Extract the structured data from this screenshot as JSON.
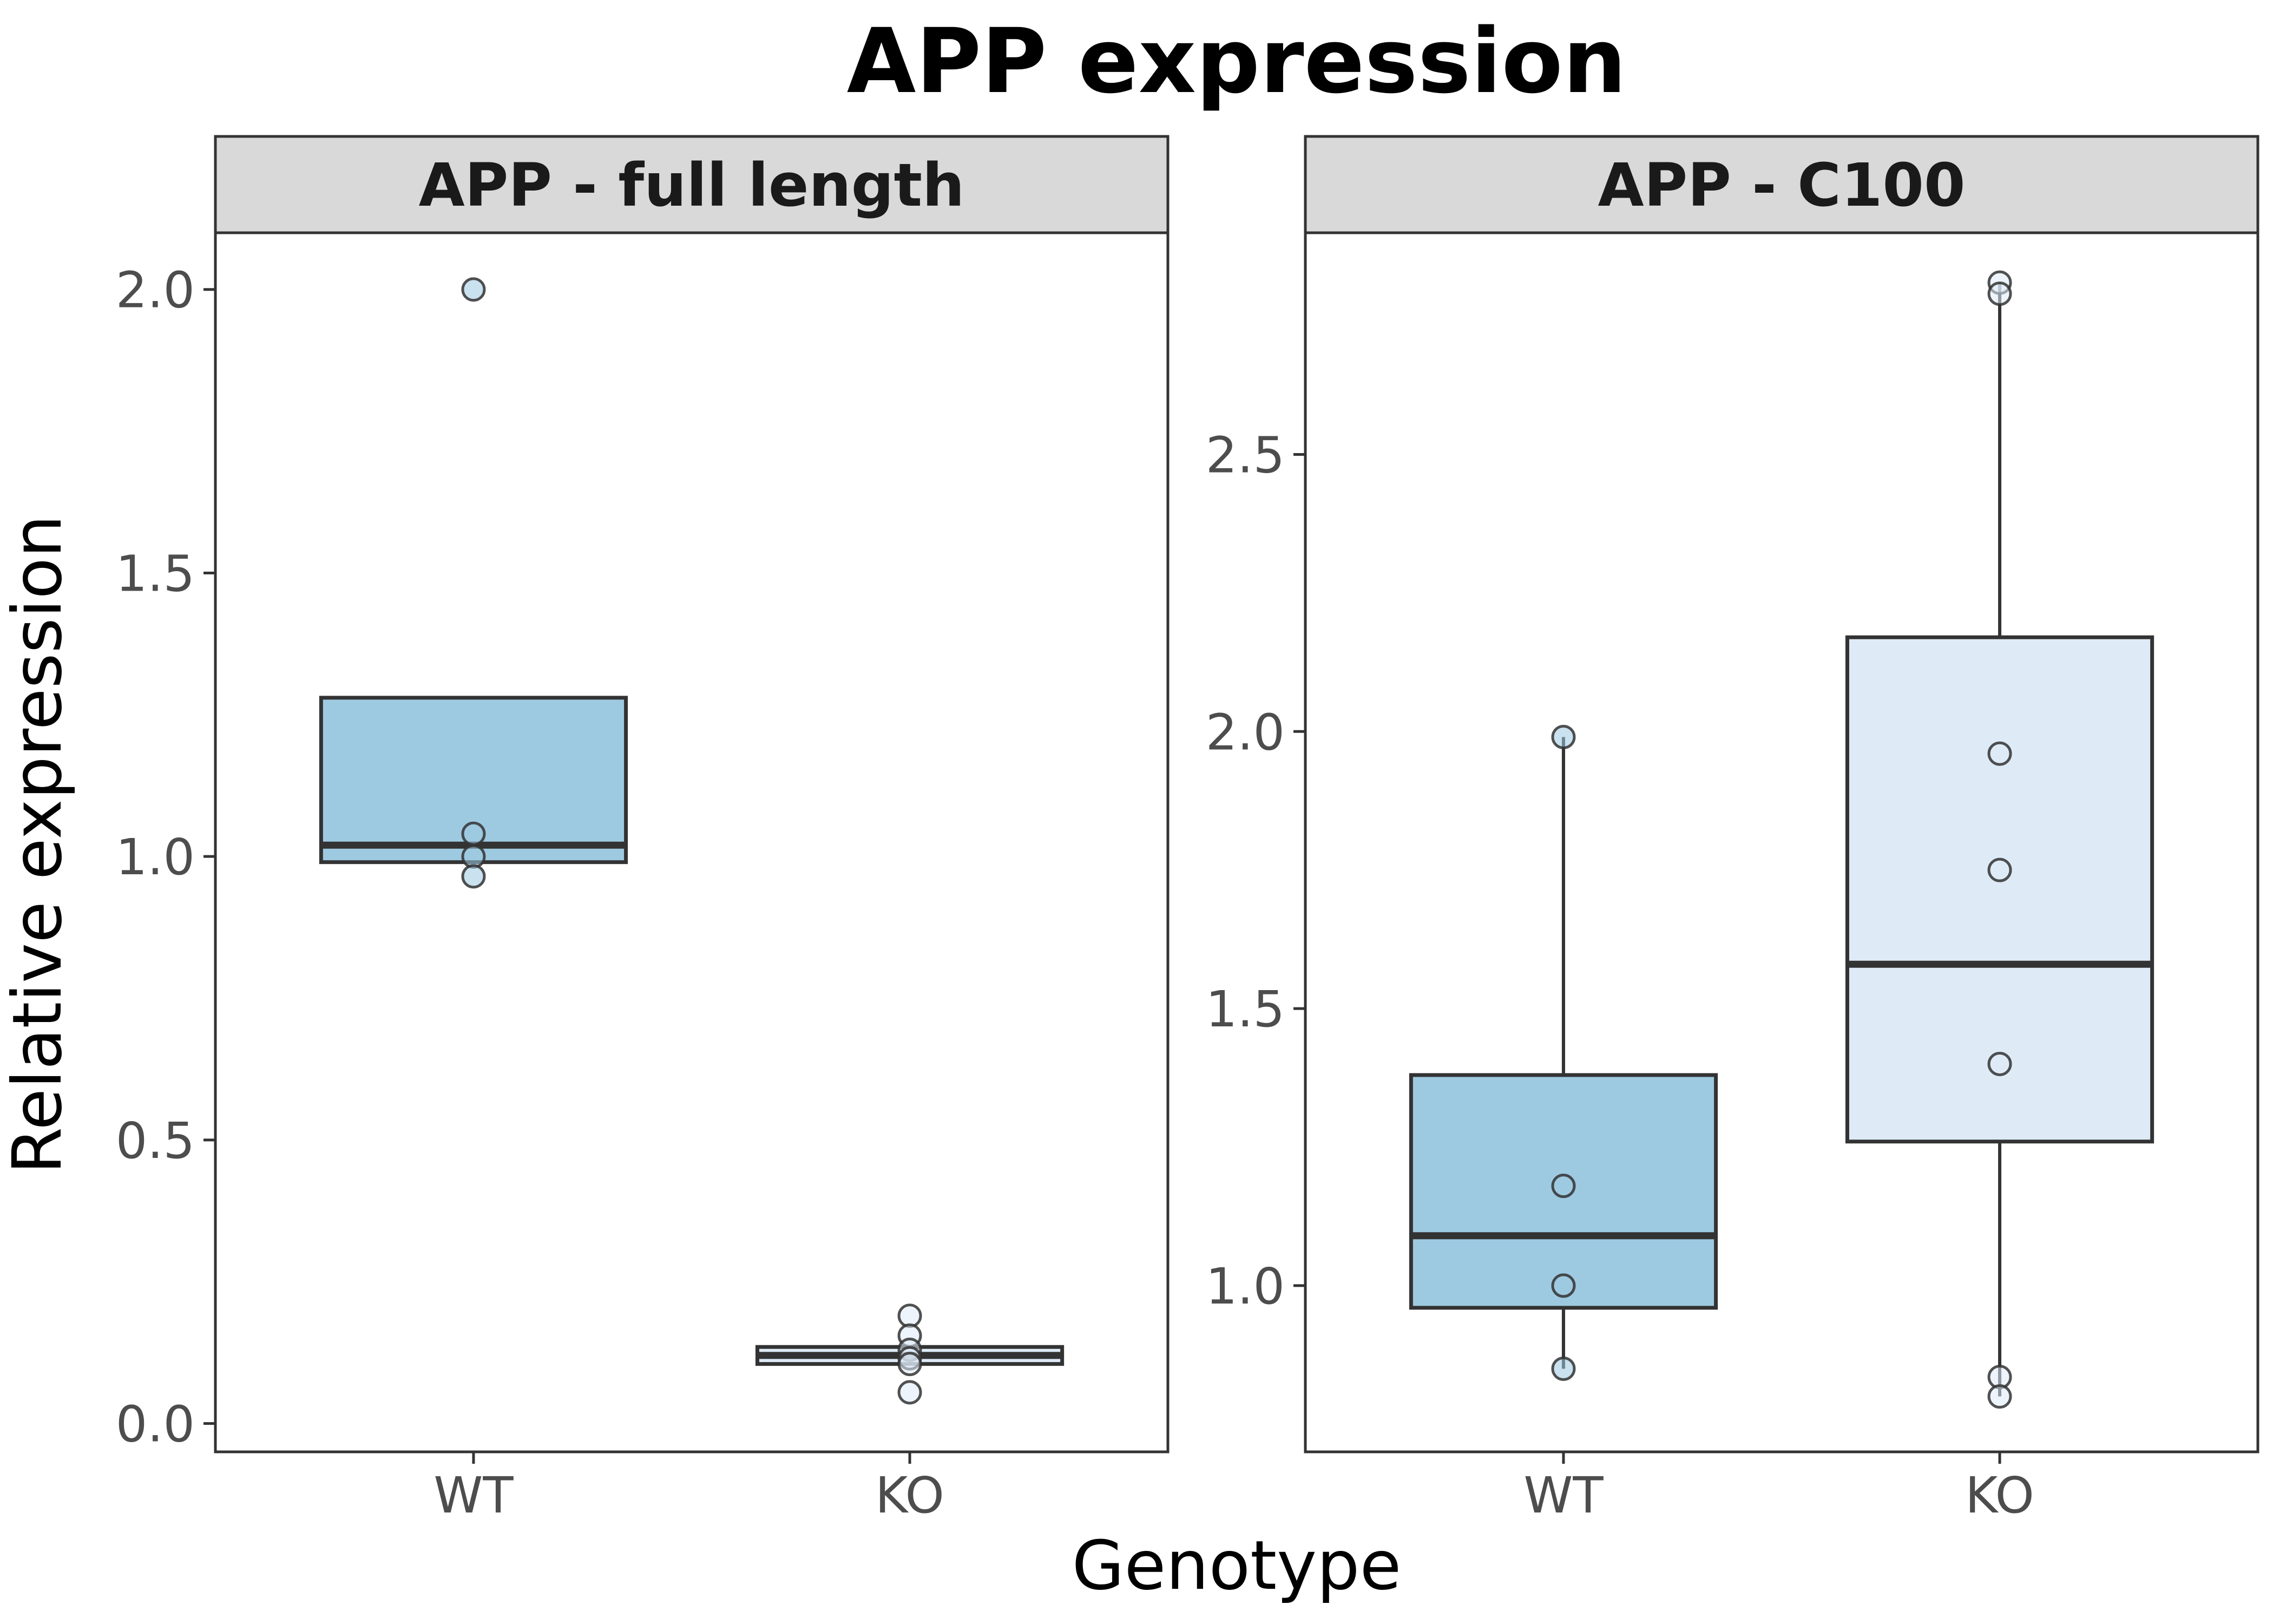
{
  "chart_data": {
    "type": "box",
    "title": "APP expression",
    "xlabel": "Genotype",
    "ylabel": "Relative expression",
    "categories": [
      "WT",
      "KO"
    ],
    "colors": {
      "WT": "#9ecae1",
      "KO": "#deebf7",
      "outline": "#333333"
    },
    "grid": false,
    "legend": "none",
    "panels": [
      {
        "title": "APP - full length",
        "ylim": [
          -0.05,
          2.1
        ],
        "yticks": [
          0.0,
          0.5,
          1.0,
          1.5,
          2.0
        ],
        "ytick_labels": [
          "0.0",
          "0.5",
          "1.0",
          "1.5",
          "2.0"
        ],
        "boxes": [
          {
            "category": "WT",
            "q1": 0.99,
            "median": 1.02,
            "q3": 1.28,
            "whisker_low": 0.99,
            "whisker_high": 1.28,
            "points": [
              2.0,
              1.04,
              1.0,
              0.965
            ]
          },
          {
            "category": "KO",
            "q1": 0.105,
            "median": 0.12,
            "q3": 0.135,
            "whisker_low": 0.105,
            "whisker_high": 0.135,
            "points": [
              0.19,
              0.155,
              0.13,
              0.115,
              0.105,
              0.055
            ]
          }
        ]
      },
      {
        "title": "APP - C100",
        "ylim": [
          0.7,
          2.9
        ],
        "yticks": [
          1.0,
          1.5,
          2.0,
          2.5
        ],
        "ytick_labels": [
          "1.0",
          "1.5",
          "2.0",
          "2.5"
        ],
        "boxes": [
          {
            "category": "WT",
            "q1": 0.96,
            "median": 1.09,
            "q3": 1.38,
            "whisker_low": 0.85,
            "whisker_high": 1.99,
            "points": [
              1.99,
              1.18,
              1.0,
              0.85
            ]
          },
          {
            "category": "KO",
            "q1": 1.26,
            "median": 1.58,
            "q3": 2.17,
            "whisker_low": 0.8,
            "whisker_high": 2.81,
            "points": [
              2.81,
              2.79,
              1.96,
              1.75,
              1.4,
              0.835,
              0.8
            ]
          }
        ]
      }
    ]
  }
}
